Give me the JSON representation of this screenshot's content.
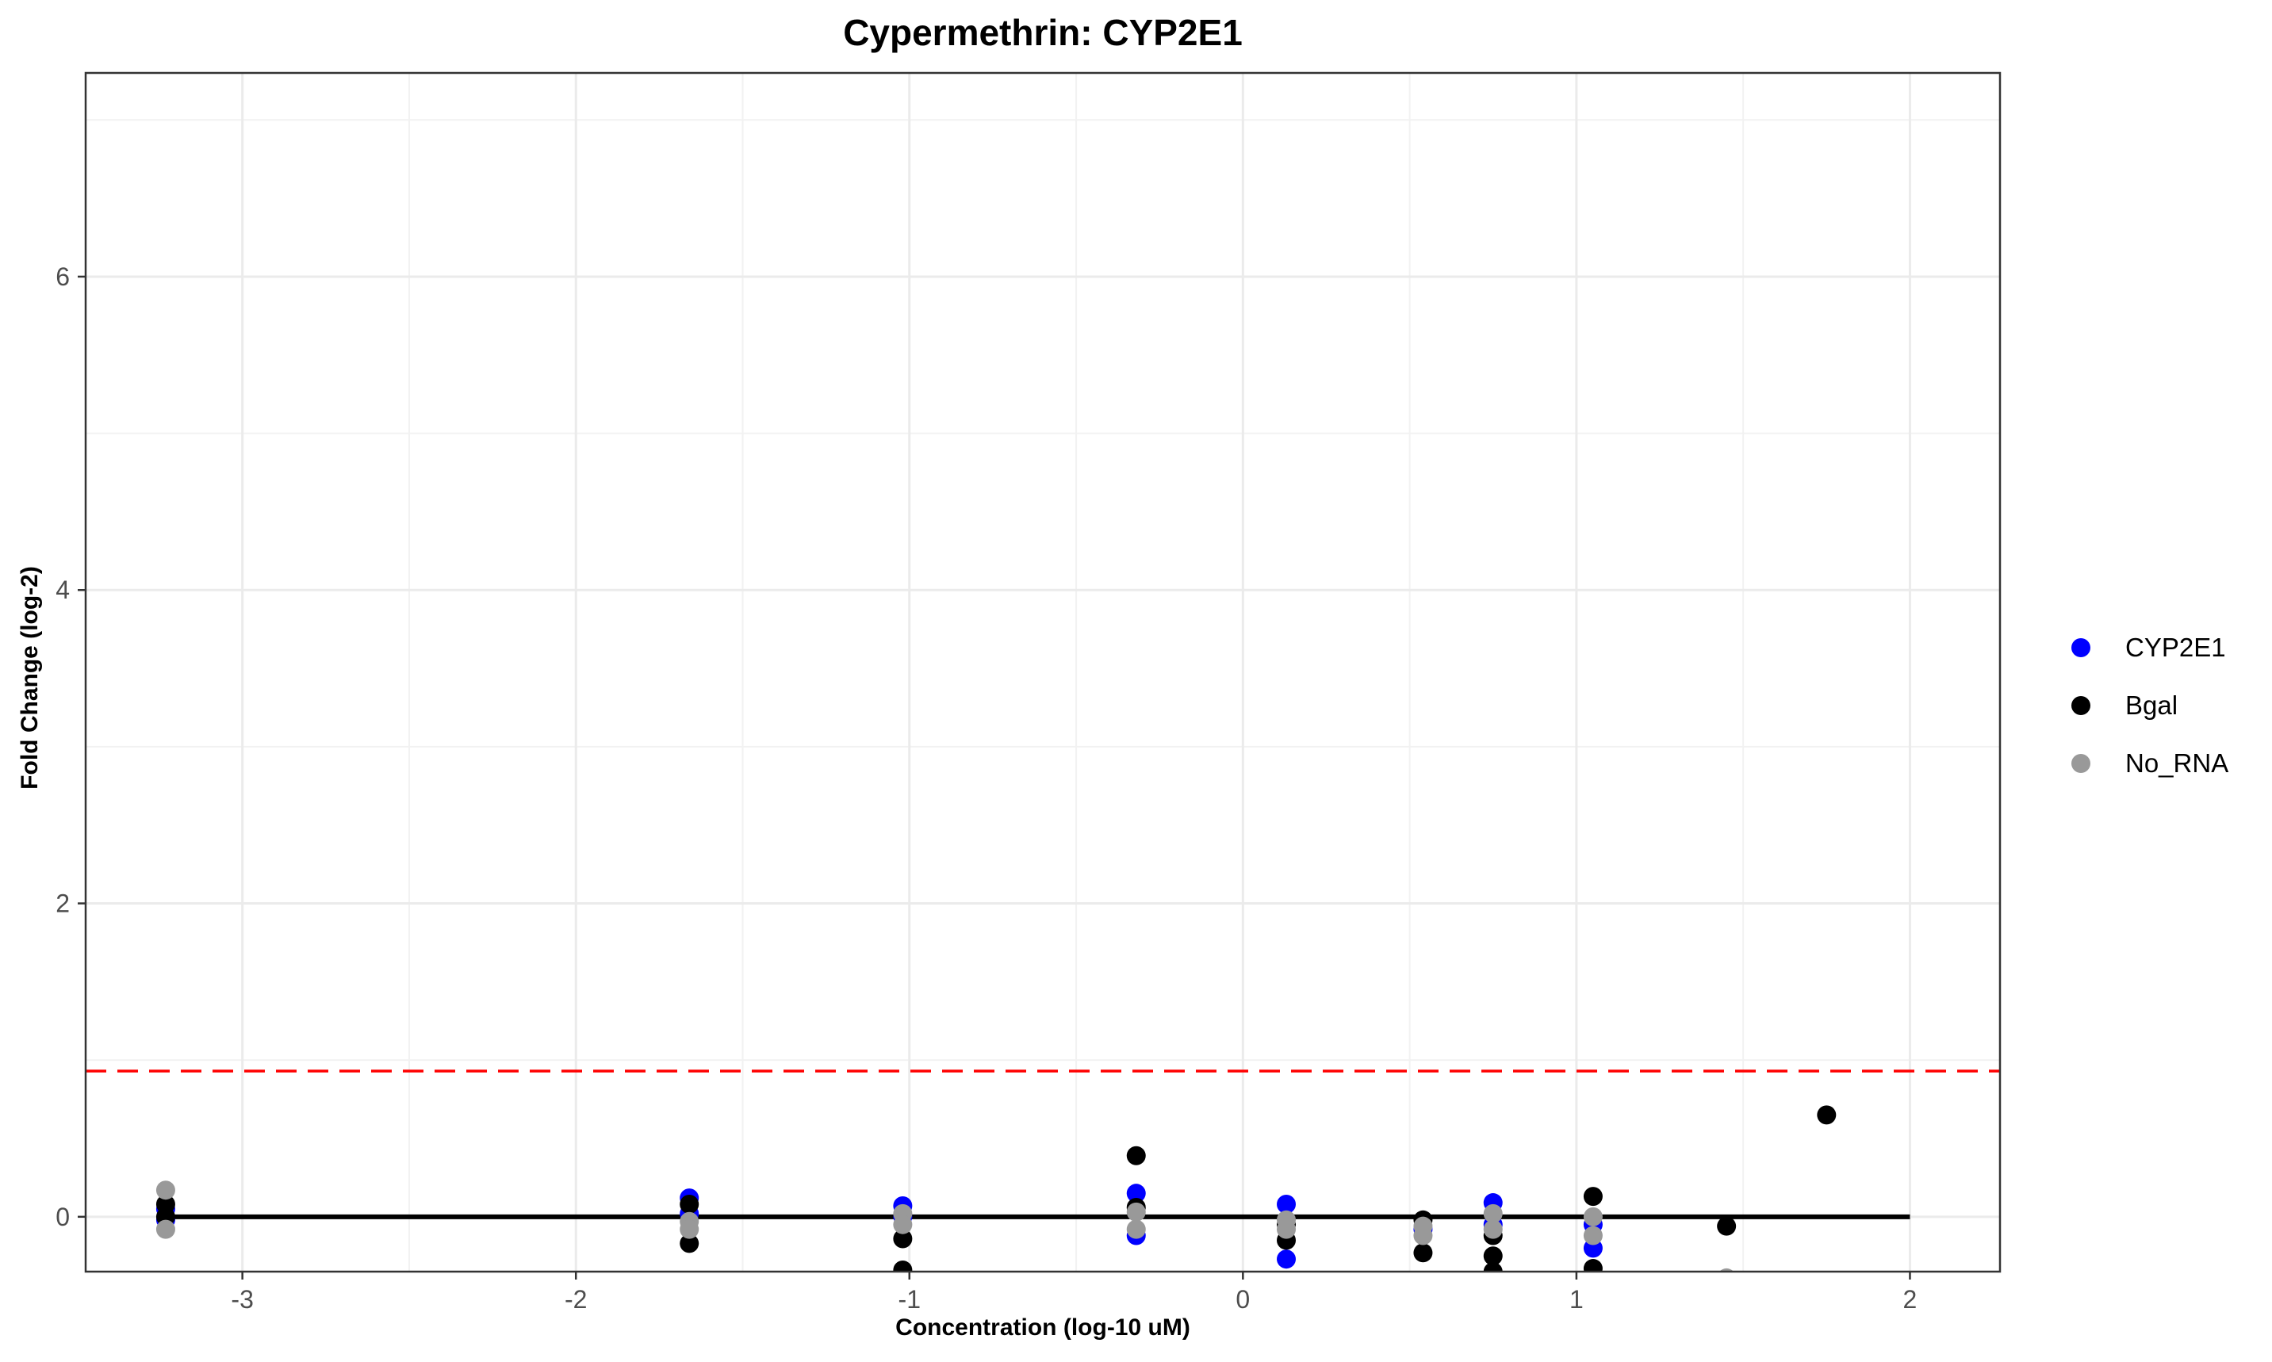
{
  "chart_data": {
    "type": "scatter",
    "title": "Cypermethrin: CYP2E1",
    "xlabel": "Concentration (log-10 uM)",
    "ylabel": "Fold Change (log-2)",
    "xlim": [
      -3.47,
      2.27
    ],
    "ylim": [
      -0.35,
      7.3
    ],
    "x_ticks": [
      -3,
      -2,
      -1,
      0,
      1,
      2
    ],
    "y_ticks": [
      0,
      2,
      4,
      6
    ],
    "grid": true,
    "legend_position": "right",
    "series": [
      {
        "name": "CYP2E1",
        "color": "#0000ff",
        "points": [
          {
            "x": -3.23,
            "y": 0.05
          },
          {
            "x": -3.23,
            "y": -0.02
          },
          {
            "x": -1.66,
            "y": 0.12
          },
          {
            "x": -1.66,
            "y": 0.02
          },
          {
            "x": -1.02,
            "y": 0.07
          },
          {
            "x": -1.02,
            "y": 0.0
          },
          {
            "x": -0.32,
            "y": 0.15
          },
          {
            "x": -0.32,
            "y": -0.12
          },
          {
            "x": 0.13,
            "y": 0.08
          },
          {
            "x": 0.13,
            "y": -0.27
          },
          {
            "x": 0.54,
            "y": -0.08
          },
          {
            "x": 0.75,
            "y": 0.09
          },
          {
            "x": 0.75,
            "y": -0.05
          },
          {
            "x": 1.05,
            "y": -0.05
          },
          {
            "x": 1.05,
            "y": -0.2
          }
        ]
      },
      {
        "name": "Bgal",
        "color": "#000000",
        "points": [
          {
            "x": -3.23,
            "y": 0.08
          },
          {
            "x": -3.23,
            "y": 0.0
          },
          {
            "x": -1.66,
            "y": 0.08
          },
          {
            "x": -1.66,
            "y": -0.17
          },
          {
            "x": -1.02,
            "y": -0.14
          },
          {
            "x": -1.02,
            "y": -0.34
          },
          {
            "x": -0.32,
            "y": 0.39
          },
          {
            "x": -0.32,
            "y": 0.06
          },
          {
            "x": 0.13,
            "y": -0.15
          },
          {
            "x": 0.13,
            "y": -0.05
          },
          {
            "x": 0.54,
            "y": -0.23
          },
          {
            "x": 0.54,
            "y": -0.02
          },
          {
            "x": 0.75,
            "y": -0.25
          },
          {
            "x": 0.75,
            "y": -0.12
          },
          {
            "x": 0.75,
            "y": -0.35
          },
          {
            "x": 1.05,
            "y": 0.13
          },
          {
            "x": 1.05,
            "y": -0.33
          },
          {
            "x": 1.45,
            "y": -0.06
          },
          {
            "x": 1.75,
            "y": 0.65
          }
        ]
      },
      {
        "name": "No_RNA",
        "color": "#999999",
        "points": [
          {
            "x": -3.23,
            "y": 0.17
          },
          {
            "x": -3.23,
            "y": -0.08
          },
          {
            "x": -1.66,
            "y": -0.03
          },
          {
            "x": -1.66,
            "y": -0.08
          },
          {
            "x": -1.02,
            "y": 0.02
          },
          {
            "x": -1.02,
            "y": -0.05
          },
          {
            "x": -0.32,
            "y": 0.03
          },
          {
            "x": -0.32,
            "y": -0.08
          },
          {
            "x": 0.13,
            "y": -0.02
          },
          {
            "x": 0.13,
            "y": -0.08
          },
          {
            "x": 0.54,
            "y": -0.06
          },
          {
            "x": 0.54,
            "y": -0.12
          },
          {
            "x": 0.75,
            "y": 0.02
          },
          {
            "x": 0.75,
            "y": -0.08
          },
          {
            "x": 1.05,
            "y": 0.0
          },
          {
            "x": 1.05,
            "y": -0.12
          },
          {
            "x": 1.45,
            "y": -0.39
          }
        ]
      }
    ],
    "reference_lines": [
      {
        "type": "solid",
        "color": "#000000",
        "y": 0,
        "x_range": [
          -3.23,
          2.0
        ]
      },
      {
        "type": "dashed",
        "color": "#ff0000",
        "y": 0.93
      }
    ]
  }
}
